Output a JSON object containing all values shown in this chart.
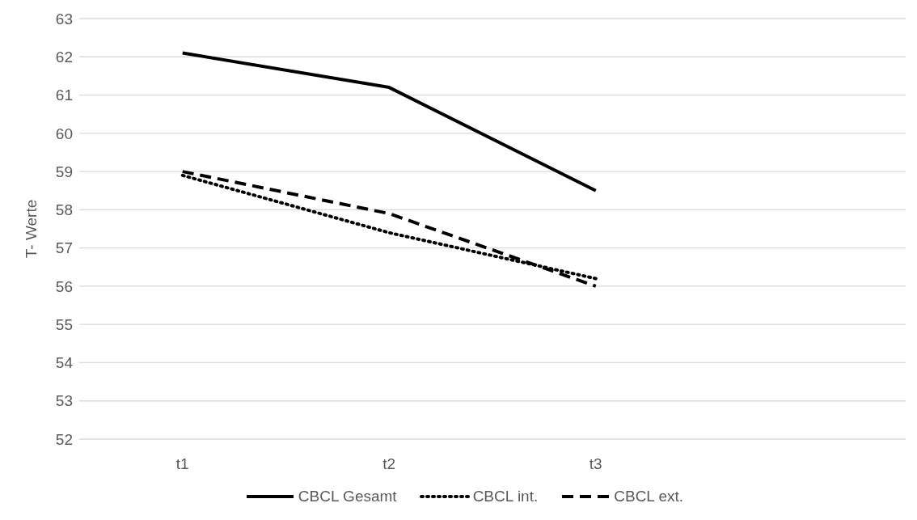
{
  "chart_data": {
    "type": "line",
    "ylabel": "T- Werte",
    "categories": [
      "t1",
      "t2",
      "t3",
      null
    ],
    "series": [
      {
        "name": "CBCL Gesamt",
        "color": "#000000",
        "line_style": "solid",
        "values": [
          62.1,
          61.2,
          58.5,
          null
        ]
      },
      {
        "name": "CBCL int.",
        "color": "#000000",
        "line_style": "dotted",
        "values": [
          58.9,
          57.4,
          56.2,
          null
        ]
      },
      {
        "name": "CBCL ext.",
        "color": "#000000",
        "line_style": "dashed",
        "values": [
          59.0,
          57.9,
          56.0,
          null
        ]
      }
    ],
    "ylim": [
      52,
      63
    ],
    "yticks": [
      52,
      53,
      54,
      55,
      56,
      57,
      58,
      59,
      60,
      61,
      62,
      63
    ],
    "grid": "y",
    "legend": "bottom",
    "marker": "none"
  }
}
